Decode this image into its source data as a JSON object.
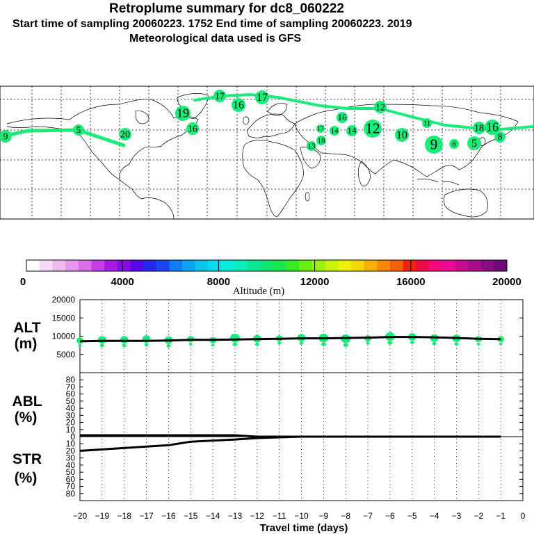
{
  "header": {
    "title": "Retroplume summary for dc8_060222",
    "line2": "Start time of sampling 20060223.  1752     End time of sampling 20060223.  2019",
    "line3": "Meteorological data used is GFS"
  },
  "map": {
    "plume_color": "#19ec78",
    "numbers": [
      "9",
      "5",
      "20",
      "19",
      "16",
      "16",
      "17",
      "17",
      "13",
      "18",
      "16",
      "14",
      "12",
      "12",
      "10",
      "9",
      "11",
      "6",
      "5",
      "8",
      "16",
      "18",
      "14",
      "17"
    ]
  },
  "colorbar": {
    "tick_labels": [
      "0",
      "4000",
      "8000",
      "12000",
      "16000",
      "20000"
    ],
    "label": "Altitude (m)",
    "colors": [
      "#ffffff",
      "#f6dcf6",
      "#eebbf0",
      "#e696ee",
      "#dc6ee9",
      "#c440e6",
      "#a81ae3",
      "#8a08e6",
      "#5a06e8",
      "#2626ee",
      "#1a46f2",
      "#127cf4",
      "#0ca4f0",
      "#08c4ee",
      "#06dcec",
      "#06ecde",
      "#08eebc",
      "#0ae496",
      "#10e470",
      "#1ae64e",
      "#38ea26",
      "#6aee12",
      "#9cf00a",
      "#c8f208",
      "#eef006",
      "#f6d606",
      "#f6b006",
      "#f68a08",
      "#f4600a",
      "#f0240c",
      "#f20a48",
      "#f40880",
      "#ea0a98",
      "#ca0c90",
      "#a80c88",
      "#8a0c84",
      "#6e0a78"
    ]
  },
  "chart_data": {
    "type": "line",
    "xlabel": "Travel time (days)",
    "x_ticks": [
      -20,
      -19,
      -18,
      -17,
      -16,
      -15,
      -14,
      -13,
      -12,
      -11,
      -10,
      -9,
      -8,
      -7,
      -6,
      -5,
      -4,
      -3,
      -2,
      -1,
      0
    ],
    "x_tick_labels": [
      "−20",
      "−19",
      "−18",
      "−17",
      "−16",
      "−15",
      "−14",
      "−13",
      "−12",
      "−11",
      "−10",
      "−9",
      "−8",
      "−7",
      "−6",
      "−5",
      "−4",
      "−3",
      "−2",
      "−1",
      "0"
    ],
    "xlim": [
      -20,
      0
    ],
    "panels": [
      {
        "name": "ALT",
        "label_line1": "ALT",
        "label_line2": "(m)",
        "ylim": [
          0,
          20000
        ],
        "y_ticks": [
          0,
          5000,
          10000,
          15000,
          20000
        ],
        "y_tick_labels": [
          "",
          "5000",
          "10000",
          "15000",
          "20000"
        ],
        "series": [
          {
            "name": "mean altitude",
            "x": [
              -20,
              -19,
              -18,
              -17,
              -16,
              -15,
              -14,
              -13,
              -12,
              -11,
              -10,
              -9,
              -8,
              -7,
              -6,
              -5,
              -4,
              -3,
              -2,
              -1
            ],
            "values": [
              8600,
              8700,
              8700,
              8700,
              8800,
              9000,
              9000,
              9100,
              9200,
              9300,
              9400,
              9400,
              9500,
              9600,
              9800,
              9800,
              9700,
              9500,
              9300,
              9200
            ]
          }
        ],
        "dots": [
          {
            "x": -20,
            "y": 8800,
            "r": 5
          },
          {
            "x": -19,
            "y": 9000,
            "r": 6
          },
          {
            "x": -18,
            "y": 9000,
            "r": 6
          },
          {
            "x": -17,
            "y": 9200,
            "r": 6
          },
          {
            "x": -16,
            "y": 8900,
            "r": 6
          },
          {
            "x": -15,
            "y": 9200,
            "r": 5
          },
          {
            "x": -14,
            "y": 8900,
            "r": 5
          },
          {
            "x": -13,
            "y": 9500,
            "r": 7
          },
          {
            "x": -12,
            "y": 9300,
            "r": 6
          },
          {
            "x": -11,
            "y": 9400,
            "r": 5
          },
          {
            "x": -10,
            "y": 9600,
            "r": 6
          },
          {
            "x": -9,
            "y": 9500,
            "r": 7
          },
          {
            "x": -8,
            "y": 9300,
            "r": 7
          },
          {
            "x": -7,
            "y": 9400,
            "r": 5
          },
          {
            "x": -6,
            "y": 9900,
            "r": 7
          },
          {
            "x": -5,
            "y": 9800,
            "r": 6
          },
          {
            "x": -4,
            "y": 9500,
            "r": 6
          },
          {
            "x": -3,
            "y": 9400,
            "r": 6
          },
          {
            "x": -2,
            "y": 9200,
            "r": 5
          },
          {
            "x": -1,
            "y": 9200,
            "r": 5
          }
        ]
      },
      {
        "name": "ABL",
        "label_line1": "ABL",
        "label_line2": "(%)",
        "ylim": [
          0,
          90
        ],
        "y_ticks": [
          0,
          10,
          20,
          30,
          40,
          50,
          60,
          70,
          80
        ],
        "y_tick_labels": [
          "0",
          "10",
          "20",
          "30",
          "40",
          "50",
          "60",
          "70",
          "80"
        ],
        "series": [
          {
            "name": "ABL fraction",
            "x": [
              -20,
              -13,
              -12,
              -1
            ],
            "values": [
              2,
              2,
              0,
              0
            ]
          }
        ]
      },
      {
        "name": "STR",
        "label_line1": "STR",
        "label_line2": "(%)",
        "ylim": [
          0,
          90
        ],
        "y_ticks": [
          0,
          10,
          20,
          30,
          40,
          50,
          60,
          70,
          80
        ],
        "y_tick_labels": [
          "0",
          "10",
          "20",
          "30",
          "40",
          "50",
          "60",
          "70",
          "80"
        ],
        "inverted": true,
        "series": [
          {
            "name": "stratospheric fraction",
            "x": [
              -20,
              -17,
              -16,
              -15,
              -13,
              -12,
              -10,
              -7,
              -6,
              -1
            ],
            "values": [
              20,
              14,
              12,
              7,
              4,
              2,
              0,
              0,
              0,
              0
            ]
          }
        ]
      }
    ]
  }
}
